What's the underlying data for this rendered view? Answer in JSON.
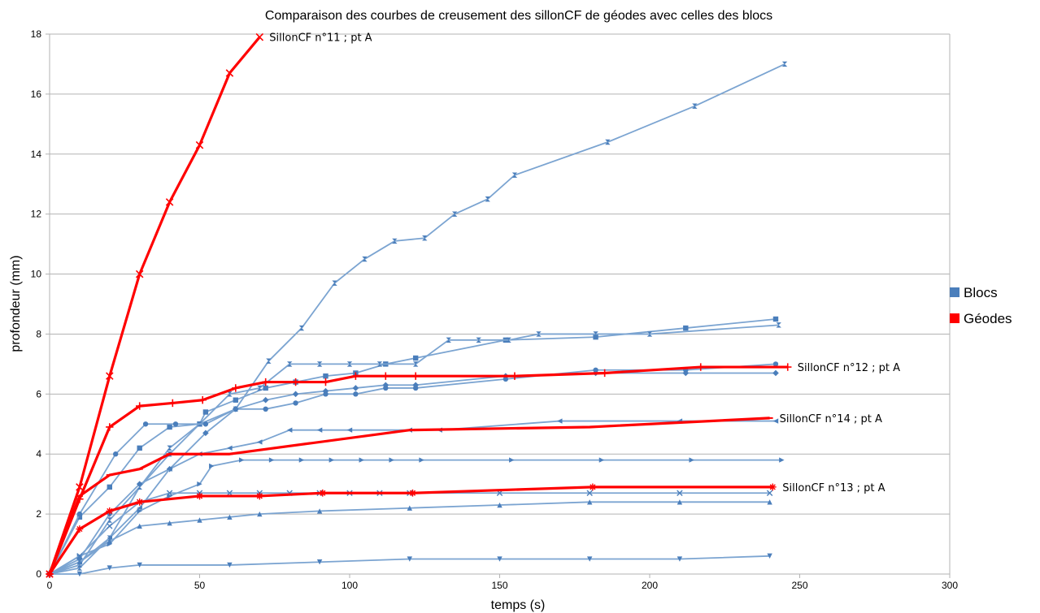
{
  "chart_data": {
    "type": "line",
    "title": "Comparaison des courbes de creusement des sillonCF de géodes avec celles des blocs",
    "xlabel": "temps (s)",
    "ylabel": "profondeur (mm)",
    "xlim": [
      0,
      300
    ],
    "ylim": [
      0,
      18
    ],
    "xticks": [
      0,
      50,
      100,
      150,
      200,
      250,
      300
    ],
    "yticks": [
      0,
      2,
      4,
      6,
      8,
      10,
      12,
      14,
      16,
      18
    ],
    "grid": "horizontal",
    "legend_position": "right",
    "legend": [
      {
        "label": "Blocs",
        "color": "#4a7ebb"
      },
      {
        "label": "Géodes",
        "color": "#ff0000"
      }
    ],
    "colors": {
      "blocs": "#7ba4d1",
      "blocs_marker": "#4a7ebb",
      "geodes": "#ff0000"
    },
    "series_blocs": [
      {
        "marker": "hourglass",
        "points": [
          [
            0,
            0
          ],
          [
            10,
            0.2
          ],
          [
            20,
            1.2
          ],
          [
            30,
            2.9
          ],
          [
            40,
            4.2
          ],
          [
            50,
            5.0
          ],
          [
            62,
            5.5
          ],
          [
            73,
            7.1
          ],
          [
            84,
            8.2
          ],
          [
            95,
            9.7
          ],
          [
            105,
            10.5
          ],
          [
            115,
            11.1
          ],
          [
            125,
            11.2
          ],
          [
            135,
            12.0
          ],
          [
            146,
            12.5
          ],
          [
            155,
            13.3
          ],
          [
            186,
            14.4
          ],
          [
            215,
            15.6
          ],
          [
            245,
            17.0
          ]
        ]
      },
      {
        "marker": "square",
        "points": [
          [
            0,
            0
          ],
          [
            10,
            1.9
          ],
          [
            20,
            2.9
          ],
          [
            30,
            4.2
          ],
          [
            40,
            4.9
          ],
          [
            50,
            5.0
          ],
          [
            52,
            5.4
          ],
          [
            62,
            5.8
          ],
          [
            72,
            6.2
          ],
          [
            82,
            6.4
          ],
          [
            92,
            6.6
          ],
          [
            102,
            6.7
          ],
          [
            112,
            7.0
          ],
          [
            122,
            7.2
          ],
          [
            152,
            7.8
          ],
          [
            182,
            7.9
          ],
          [
            212,
            8.2
          ],
          [
            242,
            8.5
          ]
        ]
      },
      {
        "marker": "hourglass",
        "points": [
          [
            0,
            0
          ],
          [
            10,
            0.3
          ],
          [
            20,
            1.8
          ],
          [
            30,
            2.9
          ],
          [
            40,
            4.0
          ],
          [
            50,
            5.0
          ],
          [
            60,
            6.0
          ],
          [
            70,
            6.2
          ],
          [
            80,
            7.0
          ],
          [
            90,
            7.0
          ],
          [
            100,
            7.0
          ],
          [
            110,
            7.0
          ],
          [
            122,
            7.0
          ],
          [
            133,
            7.8
          ],
          [
            143,
            7.8
          ],
          [
            153,
            7.8
          ],
          [
            163,
            8.0
          ],
          [
            182,
            8.0
          ],
          [
            200,
            8.0
          ],
          [
            243,
            8.3
          ]
        ]
      },
      {
        "marker": "circle",
        "points": [
          [
            0,
            0
          ],
          [
            10,
            2.0
          ],
          [
            22,
            4.0
          ],
          [
            32,
            5.0
          ],
          [
            42,
            5.0
          ],
          [
            52,
            5.0
          ],
          [
            62,
            5.5
          ],
          [
            72,
            5.5
          ],
          [
            82,
            5.7
          ],
          [
            92,
            6.0
          ],
          [
            102,
            6.0
          ],
          [
            112,
            6.2
          ],
          [
            122,
            6.2
          ],
          [
            152,
            6.5
          ],
          [
            182,
            6.8
          ],
          [
            212,
            6.8
          ],
          [
            242,
            7.0
          ]
        ]
      },
      {
        "marker": "diamond",
        "points": [
          [
            0,
            0
          ],
          [
            10,
            0.5
          ],
          [
            20,
            2.0
          ],
          [
            30,
            3.0
          ],
          [
            40,
            3.5
          ],
          [
            52,
            4.7
          ],
          [
            62,
            5.5
          ],
          [
            72,
            5.8
          ],
          [
            82,
            6.0
          ],
          [
            92,
            6.1
          ],
          [
            102,
            6.2
          ],
          [
            112,
            6.3
          ],
          [
            122,
            6.3
          ],
          [
            152,
            6.6
          ],
          [
            182,
            6.7
          ],
          [
            212,
            6.7
          ],
          [
            242,
            6.7
          ]
        ]
      },
      {
        "marker": "triangle-left",
        "points": [
          [
            0,
            0
          ],
          [
            10,
            0.4
          ],
          [
            20,
            1.2
          ],
          [
            30,
            2.2
          ],
          [
            40,
            3.5
          ],
          [
            50,
            4.0
          ],
          [
            60,
            4.2
          ],
          [
            70,
            4.4
          ],
          [
            80,
            4.8
          ],
          [
            90,
            4.8
          ],
          [
            100,
            4.8
          ],
          [
            120,
            4.8
          ],
          [
            130,
            4.8
          ],
          [
            170,
            5.1
          ],
          [
            210,
            5.1
          ],
          [
            242,
            5.1
          ]
        ]
      },
      {
        "marker": "triangle-right",
        "points": [
          [
            0,
            0
          ],
          [
            10,
            0.6
          ],
          [
            20,
            1.0
          ],
          [
            30,
            2.1
          ],
          [
            40,
            2.6
          ],
          [
            50,
            3.0
          ],
          [
            54,
            3.6
          ],
          [
            64,
            3.8
          ],
          [
            74,
            3.8
          ],
          [
            84,
            3.8
          ],
          [
            94,
            3.8
          ],
          [
            104,
            3.8
          ],
          [
            114,
            3.8
          ],
          [
            124,
            3.8
          ],
          [
            154,
            3.8
          ],
          [
            184,
            3.8
          ],
          [
            214,
            3.8
          ],
          [
            244,
            3.8
          ]
        ]
      },
      {
        "marker": "cross",
        "points": [
          [
            0,
            0
          ],
          [
            10,
            0.6
          ],
          [
            20,
            1.6
          ],
          [
            30,
            2.4
          ],
          [
            40,
            2.7
          ],
          [
            50,
            2.7
          ],
          [
            60,
            2.7
          ],
          [
            70,
            2.7
          ],
          [
            80,
            2.7
          ],
          [
            90,
            2.7
          ],
          [
            100,
            2.7
          ],
          [
            110,
            2.7
          ],
          [
            120,
            2.7
          ],
          [
            150,
            2.7
          ],
          [
            180,
            2.7
          ],
          [
            210,
            2.7
          ],
          [
            240,
            2.7
          ]
        ]
      },
      {
        "marker": "triangle-up",
        "points": [
          [
            0,
            0
          ],
          [
            10,
            0.4
          ],
          [
            20,
            1.1
          ],
          [
            30,
            1.6
          ],
          [
            40,
            1.7
          ],
          [
            50,
            1.8
          ],
          [
            60,
            1.9
          ],
          [
            70,
            2.0
          ],
          [
            90,
            2.1
          ],
          [
            120,
            2.2
          ],
          [
            150,
            2.3
          ],
          [
            180,
            2.4
          ],
          [
            210,
            2.4
          ],
          [
            240,
            2.4
          ]
        ]
      },
      {
        "marker": "triangle-down",
        "points": [
          [
            0,
            0
          ],
          [
            10,
            0
          ],
          [
            20,
            0.2
          ],
          [
            30,
            0.3
          ],
          [
            60,
            0.3
          ],
          [
            90,
            0.4
          ],
          [
            120,
            0.5
          ],
          [
            150,
            0.5
          ],
          [
            180,
            0.5
          ],
          [
            210,
            0.5
          ],
          [
            240,
            0.6
          ]
        ]
      }
    ],
    "series_geodes": [
      {
        "name": "SillonCF n°11 ; pt A",
        "marker": "x",
        "points": [
          [
            0,
            0
          ],
          [
            10,
            2.9
          ],
          [
            20,
            6.6
          ],
          [
            30,
            10.0
          ],
          [
            40,
            12.4
          ],
          [
            50,
            14.3
          ],
          [
            60,
            16.7
          ],
          [
            70,
            17.9
          ]
        ]
      },
      {
        "name": "SillonCF n°12 ; pt A",
        "marker": "plus",
        "points": [
          [
            0,
            0
          ],
          [
            10,
            2.5
          ],
          [
            20,
            4.9
          ],
          [
            30,
            5.6
          ],
          [
            41,
            5.7
          ],
          [
            51,
            5.8
          ],
          [
            62,
            6.2
          ],
          [
            72,
            6.4
          ],
          [
            82,
            6.4
          ],
          [
            92,
            6.4
          ],
          [
            102,
            6.6
          ],
          [
            112,
            6.6
          ],
          [
            122,
            6.6
          ],
          [
            155,
            6.6
          ],
          [
            185,
            6.7
          ],
          [
            217,
            6.9
          ],
          [
            246,
            6.9
          ]
        ]
      },
      {
        "name": "SillonCF n°14 ; pt A",
        "marker": "dash",
        "points": [
          [
            0,
            0
          ],
          [
            10,
            2.6
          ],
          [
            20,
            3.3
          ],
          [
            30,
            3.5
          ],
          [
            40,
            4.0
          ],
          [
            60,
            4.0
          ],
          [
            120,
            4.8
          ],
          [
            180,
            4.9
          ],
          [
            240,
            5.2
          ]
        ]
      },
      {
        "name": "SillonCF n°13 ; pt A",
        "marker": "star",
        "points": [
          [
            0,
            0
          ],
          [
            10,
            1.5
          ],
          [
            20,
            2.1
          ],
          [
            30,
            2.4
          ],
          [
            50,
            2.6
          ],
          [
            70,
            2.6
          ],
          [
            91,
            2.7
          ],
          [
            121,
            2.7
          ],
          [
            181,
            2.9
          ],
          [
            241,
            2.9
          ]
        ]
      }
    ]
  }
}
